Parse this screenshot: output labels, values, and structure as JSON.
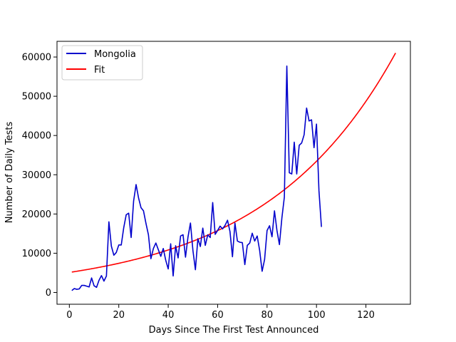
{
  "chart_data": {
    "type": "line",
    "title": "",
    "xlabel": "Days Since The First Test Announced",
    "ylabel": "Number of Daily Tests",
    "xlim": [
      -5,
      138
    ],
    "ylim": [
      -3000,
      64000
    ],
    "xticks": [
      0,
      20,
      40,
      60,
      80,
      100,
      120
    ],
    "yticks": [
      0,
      10000,
      20000,
      30000,
      40000,
      50000,
      60000
    ],
    "grid": false,
    "legend": "top-left",
    "series": [
      {
        "name": "Mongolia",
        "color": "#0000cc",
        "x": [
          1,
          2,
          3,
          4,
          5,
          6,
          7,
          8,
          9,
          10,
          11,
          12,
          13,
          14,
          15,
          16,
          17,
          18,
          19,
          20,
          21,
          22,
          23,
          24,
          25,
          26,
          27,
          28,
          29,
          30,
          31,
          32,
          33,
          34,
          35,
          36,
          37,
          38,
          39,
          40,
          41,
          42,
          43,
          44,
          45,
          46,
          47,
          48,
          49,
          50,
          51,
          52,
          53,
          54,
          55,
          56,
          57,
          58,
          59,
          60,
          61,
          62,
          63,
          64,
          65,
          66,
          67,
          68,
          69,
          70,
          71,
          72,
          73,
          74,
          75,
          76,
          77,
          78,
          79,
          80,
          81,
          82,
          83,
          84,
          85,
          86,
          87,
          88,
          89,
          90,
          91,
          92,
          93,
          94,
          95,
          96,
          97,
          98,
          99,
          100,
          101,
          102
        ],
        "y": [
          500,
          1000,
          800,
          900,
          1800,
          1800,
          1600,
          1400,
          3700,
          1700,
          1300,
          3100,
          4300,
          2900,
          4200,
          18000,
          11800,
          9500,
          10200,
          12100,
          12100,
          16500,
          19800,
          20200,
          14000,
          23300,
          27500,
          24100,
          21600,
          20800,
          17600,
          14700,
          8600,
          11200,
          12600,
          10900,
          9200,
          11200,
          8200,
          6000,
          12400,
          4200,
          11900,
          8800,
          14400,
          14700,
          9000,
          14100,
          17700,
          10700,
          5800,
          13700,
          11700,
          16400,
          12000,
          14700,
          14000,
          22900,
          14800,
          15800,
          16900,
          16200,
          17100,
          18400,
          15500,
          9100,
          17700,
          13100,
          12800,
          12700,
          7100,
          12000,
          12600,
          15100,
          13100,
          14400,
          10700,
          5400,
          8400,
          15800,
          17000,
          14200,
          20800,
          15800,
          12200,
          19000,
          24300,
          57700,
          30500,
          30200,
          38300,
          30200,
          37500,
          38100,
          40200,
          47000,
          43700,
          44000,
          36900,
          42900,
          25900,
          16700
        ]
      },
      {
        "name": "Fit",
        "color": "#ff0000",
        "fit": {
          "a": 5200,
          "x0": 1,
          "k": 0.0188,
          "x_end": 132
        }
      }
    ]
  }
}
